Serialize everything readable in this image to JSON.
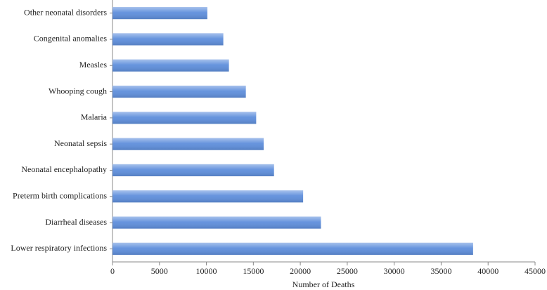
{
  "chart_data": {
    "type": "barh",
    "categories": [
      "Other neonatal disorders",
      "Congenital anomalies",
      "Measles",
      "Whooping cough",
      "Malaria",
      "Neonatal sepsis",
      "Neonatal encephalopathy",
      "Preterm birth complications",
      "Diarrheal diseases",
      "Lower respiratory infections"
    ],
    "values": [
      10100,
      11800,
      12400,
      14200,
      15300,
      16100,
      17200,
      20300,
      22200,
      38400
    ],
    "color": "#5f8fdc",
    "xlabel": "Number of Deaths",
    "xlim": [
      0,
      45000
    ],
    "xticks": [
      0,
      5000,
      10000,
      15000,
      20000,
      25000,
      30000,
      35000,
      40000,
      45000
    ],
    "grid": false
  }
}
